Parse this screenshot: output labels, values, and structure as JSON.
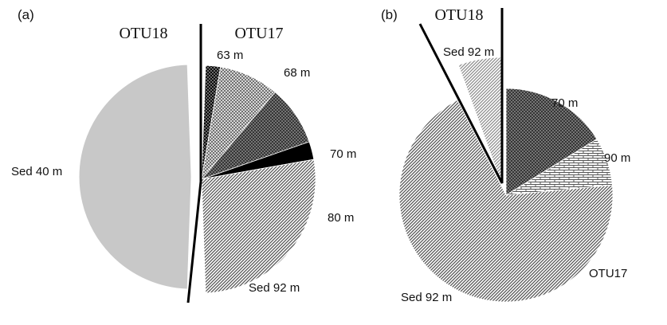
{
  "colors": {
    "background": "#ffffff",
    "ink": "#111111",
    "light_gray": "#c8c8c8",
    "black": "#000000"
  },
  "chart_data": [
    {
      "type": "pie",
      "panel_label": "(a)",
      "groups": [
        {
          "name": "OTU18",
          "slices": [
            {
              "label": "Sed 40 m",
              "value": 100,
              "pattern": "light-gray-solid"
            }
          ]
        },
        {
          "name": "OTU17",
          "slices": [
            {
              "label": "63 m",
              "value": 4.3,
              "pattern": "black-dotted"
            },
            {
              "label": "68 m",
              "value": 17.4,
              "pattern": "fine-cross-hatch"
            },
            {
              "label": "70 m",
              "value": 17.4,
              "pattern": "dark-cross-hatch"
            },
            {
              "label": "80 m",
              "value": 5.2,
              "pattern": "black-solid"
            },
            {
              "label": "Sed 92 m",
              "value": 55.7,
              "pattern": "fine-diagonal-hatch"
            }
          ]
        }
      ]
    },
    {
      "type": "pie",
      "panel_label": "(b)",
      "groups": [
        {
          "name": "OTU18",
          "slices": [
            {
              "label": "Sed 92 m",
              "value": 100,
              "pattern": "light-diagonal-hatch"
            }
          ]
        },
        {
          "name": "OTU17",
          "slices": [
            {
              "label": "70 m",
              "value": 17.5,
              "pattern": "dark-cross-hatch"
            },
            {
              "label": "90 m",
              "value": 7.9,
              "pattern": "brick"
            },
            {
              "label": "Sed 92 m",
              "value": 74.6,
              "pattern": "fine-diagonal-hatch"
            }
          ]
        }
      ],
      "annotations": [
        "OTU17"
      ]
    }
  ]
}
